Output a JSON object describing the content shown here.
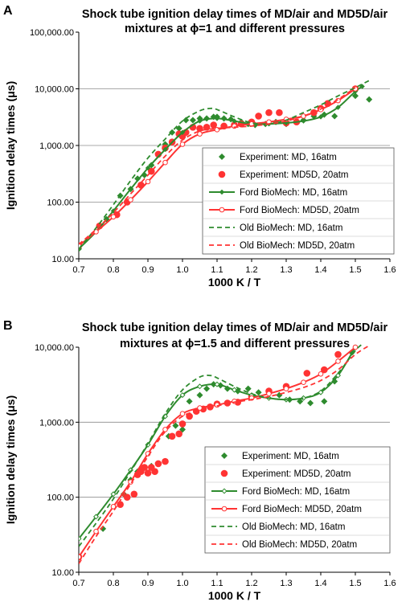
{
  "chart_data": [
    {
      "panel": "A",
      "type": "scatter",
      "title_lines": [
        "Shock tube ignition delay times of MD/air and MD5D/air",
        "mixtures at ϕ=1 and different pressures"
      ],
      "xlabel": "1000 K / T",
      "ylabel": "Ignition delay times (μs)",
      "xlim": [
        0.7,
        1.6
      ],
      "ylim": [
        10,
        100000
      ],
      "yscale": "log",
      "x_ticks": [
        "0.7",
        "0.8",
        "0.9",
        "1.0",
        "1.1",
        "1.2",
        "1.3",
        "1.4",
        "1.5",
        "1.6"
      ],
      "y_ticks": [
        "10.00",
        "100.00",
        "1,000.00",
        "10,000.00",
        "100,000.00"
      ],
      "grid": "horizontal",
      "legend_position": "lower-right",
      "series": [
        {
          "name": "Experiment: MD, 16atm",
          "style": "diamond",
          "color": "#2e8b2e",
          "x": [
            0.7,
            0.78,
            0.82,
            0.85,
            0.87,
            0.89,
            0.91,
            0.93,
            0.95,
            0.97,
            0.99,
            1.01,
            1.03,
            1.05,
            1.07,
            1.09,
            1.1,
            1.12,
            1.14,
            1.17,
            1.19,
            1.21,
            1.24,
            1.27,
            1.3,
            1.33,
            1.35,
            1.38,
            1.41,
            1.44,
            1.5,
            1.54
          ],
          "y": [
            15,
            50,
            130,
            170,
            260,
            300,
            450,
            700,
            1050,
            1700,
            2000,
            2800,
            2800,
            3000,
            3000,
            3200,
            3200,
            3000,
            2900,
            2600,
            2400,
            2300,
            2400,
            2600,
            2400,
            2600,
            2800,
            3300,
            3500,
            3300,
            7500,
            6500
          ]
        },
        {
          "name": "Experiment: MD5D, 20atm",
          "style": "circle",
          "color": "#ff3333",
          "x": [
            0.7,
            0.76,
            0.81,
            0.84,
            0.88,
            0.91,
            0.93,
            0.95,
            0.97,
            0.99,
            1.0,
            1.01,
            1.03,
            1.05,
            1.07,
            1.09,
            1.12,
            1.15,
            1.17,
            1.2,
            1.22,
            1.25,
            1.28,
            1.3,
            1.33,
            1.38,
            1.4,
            1.42,
            1.5
          ],
          "y": [
            17,
            38,
            60,
            100,
            200,
            350,
            700,
            900,
            1150,
            1600,
            1450,
            1700,
            2100,
            2000,
            2100,
            2300,
            2200,
            2300,
            2400,
            2600,
            3300,
            3800,
            3800,
            2500,
            2600,
            3800,
            4500,
            5500,
            10000
          ]
        },
        {
          "name": "Ford BioMech: MD, 16atm",
          "style": "solid-diamond",
          "color": "#2e8b2e",
          "x": [
            0.7,
            0.75,
            0.8,
            0.85,
            0.9,
            0.95,
            1.0,
            1.05,
            1.1,
            1.15,
            1.2,
            1.25,
            1.3,
            1.35,
            1.4,
            1.45,
            1.5,
            1.52
          ],
          "y": [
            15,
            30,
            70,
            170,
            400,
            850,
            1700,
            2700,
            3000,
            2700,
            2400,
            2400,
            2500,
            2700,
            3200,
            4700,
            9000,
            11000
          ]
        },
        {
          "name": "Ford BioMech: MD5D, 20atm",
          "style": "solid-open-circle",
          "color": "#ff3333",
          "x": [
            0.7,
            0.75,
            0.8,
            0.85,
            0.9,
            0.95,
            1.0,
            1.05,
            1.1,
            1.15,
            1.2,
            1.25,
            1.3,
            1.35,
            1.4,
            1.45,
            1.5
          ],
          "y": [
            17,
            30,
            55,
            110,
            230,
            500,
            1050,
            1600,
            1900,
            2200,
            2400,
            2600,
            2900,
            3300,
            4300,
            6200,
            10000
          ]
        },
        {
          "name": "Old BioMech: MD, 16atm",
          "style": "dashed",
          "color": "#2e8b2e",
          "x": [
            0.7,
            0.75,
            0.8,
            0.85,
            0.9,
            0.95,
            1.0,
            1.05,
            1.08,
            1.1,
            1.15,
            1.2,
            1.25,
            1.3,
            1.35,
            1.4,
            1.45,
            1.5,
            1.54
          ],
          "y": [
            15,
            35,
            90,
            240,
            600,
            1300,
            2700,
            4100,
            4500,
            4300,
            3200,
            2500,
            2400,
            2800,
            3800,
            5200,
            7500,
            10500,
            14000
          ]
        },
        {
          "name": "Old BioMech: MD5D, 20atm",
          "style": "dashed",
          "color": "#ff3333",
          "x": [
            0.7,
            0.75,
            0.8,
            0.85,
            0.9,
            0.95,
            1.0,
            1.05,
            1.1,
            1.15,
            1.2,
            1.25,
            1.3,
            1.35,
            1.4,
            1.45,
            1.5
          ],
          "y": [
            18,
            33,
            65,
            140,
            300,
            650,
            1250,
            1800,
            2000,
            2100,
            2200,
            2400,
            2700,
            3300,
            4400,
            6500,
            10500
          ]
        }
      ]
    },
    {
      "panel": "B",
      "type": "scatter",
      "title_lines": [
        "Shock tube ignition delay times of MD/air and MD5D/air",
        "mixtures at ϕ=1.5 and different pressures"
      ],
      "xlabel": "1000 K / T",
      "ylabel": "Ignition delay times (μs)",
      "xlim": [
        0.7,
        1.6
      ],
      "ylim": [
        10,
        10000
      ],
      "yscale": "log",
      "x_ticks": [
        "0.7",
        "0.8",
        "0.9",
        "1.0",
        "1.1",
        "1.2",
        "1.3",
        "1.4",
        "1.5",
        "1.6"
      ],
      "y_ticks": [
        "10.00",
        "100.00",
        "1,000.00",
        "10,000.00"
      ],
      "grid": "horizontal",
      "legend_position": "lower-right",
      "series": [
        {
          "name": "Experiment: MD, 16atm",
          "style": "diamond",
          "color": "#2e8b2e",
          "x": [
            0.77,
            0.83,
            0.85,
            0.87,
            0.89,
            0.91,
            0.93,
            0.96,
            0.98,
            1.0,
            1.02,
            1.05,
            1.07,
            1.09,
            1.11,
            1.13,
            1.16,
            1.19,
            1.22,
            1.25,
            1.28,
            1.31,
            1.34,
            1.37,
            1.41,
            1.44,
            1.49
          ],
          "y": [
            38,
            110,
            170,
            220,
            250,
            260,
            280,
            650,
            900,
            800,
            1900,
            2300,
            2800,
            3200,
            3100,
            2800,
            2600,
            2800,
            2500,
            2600,
            2300,
            2000,
            1900,
            1800,
            1900,
            3500,
            8500
          ]
        },
        {
          "name": "Experiment: MD5D, 20atm",
          "style": "circle",
          "color": "#ff3333",
          "x": [
            0.7,
            0.82,
            0.84,
            0.86,
            0.87,
            0.88,
            0.89,
            0.9,
            0.91,
            0.92,
            0.93,
            0.95,
            0.97,
            0.99,
            1.0,
            1.02,
            1.04,
            1.06,
            1.08,
            1.1,
            1.13,
            1.16,
            1.2,
            1.25,
            1.3,
            1.36,
            1.41,
            1.45
          ],
          "y": [
            16,
            80,
            100,
            110,
            200,
            220,
            250,
            210,
            250,
            220,
            280,
            300,
            650,
            700,
            950,
            1200,
            1400,
            1500,
            1600,
            1750,
            1800,
            1850,
            2200,
            2600,
            3000,
            4500,
            5000,
            8000
          ]
        },
        {
          "name": "Ford BioMech: MD, 16atm",
          "style": "solid-open-diamond",
          "color": "#2e8b2e",
          "x": [
            0.7,
            0.75,
            0.8,
            0.85,
            0.9,
            0.95,
            1.0,
            1.05,
            1.1,
            1.15,
            1.2,
            1.25,
            1.3,
            1.35,
            1.4,
            1.45,
            1.5
          ],
          "y": [
            28,
            55,
            110,
            230,
            500,
            1200,
            2300,
            3000,
            3200,
            2700,
            2300,
            2100,
            2000,
            2100,
            2500,
            4200,
            10000
          ]
        },
        {
          "name": "Ford BioMech: MD5D, 20atm",
          "style": "solid-open-circle",
          "color": "#ff3333",
          "x": [
            0.7,
            0.75,
            0.8,
            0.85,
            0.9,
            0.95,
            1.0,
            1.05,
            1.1,
            1.15,
            1.2,
            1.25,
            1.3,
            1.35,
            1.4,
            1.45,
            1.5
          ],
          "y": [
            16,
            35,
            75,
            160,
            380,
            800,
            1300,
            1550,
            1700,
            1900,
            2100,
            2400,
            2800,
            3400,
            4400,
            6500,
            10000
          ]
        },
        {
          "name": "Old BioMech: MD, 16atm",
          "style": "dashed",
          "color": "#2e8b2e",
          "x": [
            0.7,
            0.75,
            0.8,
            0.85,
            0.9,
            0.95,
            1.0,
            1.05,
            1.08,
            1.1,
            1.15,
            1.2,
            1.25,
            1.3,
            1.35,
            1.4,
            1.45,
            1.5,
            1.52
          ],
          "y": [
            22,
            45,
            95,
            220,
            520,
            1300,
            2700,
            4000,
            4200,
            3900,
            3000,
            2400,
            2100,
            2000,
            2100,
            2600,
            4500,
            9000,
            11000
          ]
        },
        {
          "name": "Old BioMech: MD5D, 20atm",
          "style": "dashed",
          "color": "#ff3333",
          "x": [
            0.7,
            0.75,
            0.8,
            0.85,
            0.9,
            0.95,
            1.0,
            1.05,
            1.1,
            1.15,
            1.2,
            1.25,
            1.3,
            1.35,
            1.4,
            1.45,
            1.5,
            1.54
          ],
          "y": [
            13,
            30,
            65,
            150,
            350,
            750,
            1200,
            1450,
            1650,
            1850,
            2000,
            2200,
            2500,
            2900,
            3600,
            5000,
            8000,
            10500
          ]
        }
      ]
    }
  ]
}
